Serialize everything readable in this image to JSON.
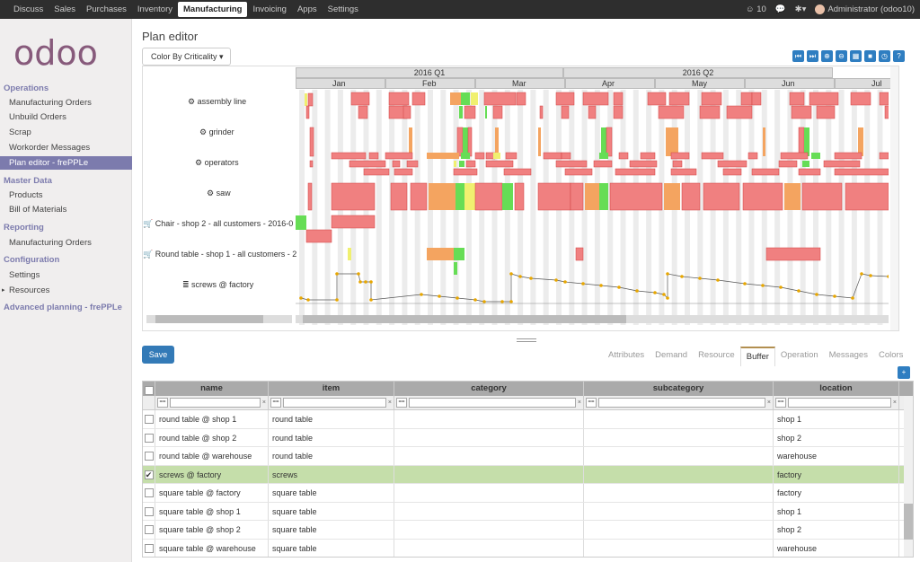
{
  "topbar": {
    "menu": [
      "Discuss",
      "Sales",
      "Purchases",
      "Inventory",
      "Manufacturing",
      "Invoicing",
      "Apps",
      "Settings"
    ],
    "active": "Manufacturing",
    "notif": "10",
    "user": "Administrator (odoo10)"
  },
  "sidebar": {
    "logo": "odoo",
    "sec_operations": "Operations",
    "operations": [
      "Manufacturing Orders",
      "Unbuild Orders",
      "Scrap",
      "Workorder Messages"
    ],
    "active_item": "Plan editor - frePPLe",
    "sec_master": "Master Data",
    "master": [
      "Products",
      "Bill of Materials"
    ],
    "sec_reporting": "Reporting",
    "reporting": [
      "Manufacturing Orders"
    ],
    "sec_config": "Configuration",
    "config": [
      "Settings",
      "Resources"
    ],
    "advanced": "Advanced planning - frePPLe"
  },
  "page": {
    "title": "Plan editor",
    "color_dropdown": "Color By Criticality"
  },
  "timeline": {
    "quarters": [
      "2016 Q1",
      "2016 Q2"
    ],
    "months": [
      "Jan",
      "Feb",
      "Mar",
      "Apr",
      "May",
      "Jun",
      "Jul"
    ]
  },
  "gantt_rows": [
    "assembly line",
    "grinder",
    "operators",
    "saw",
    "Chair - shop 2 - all customers - 2016-0",
    "Round table - shop 1 - all customers - 2",
    "screws @ factory"
  ],
  "save_label": "Save",
  "tabs": [
    "Attributes",
    "Demand",
    "Resource",
    "Buffer",
    "Operation",
    "Messages",
    "Colors"
  ],
  "active_tab": "Buffer",
  "table": {
    "columns": [
      "name",
      "item",
      "category",
      "subcategory",
      "location"
    ],
    "op": "==",
    "rows": [
      {
        "name": "round table @ shop 1",
        "item": "round table",
        "category": "",
        "subcategory": "",
        "location": "shop 1",
        "checked": false
      },
      {
        "name": "round table @ shop 2",
        "item": "round table",
        "category": "",
        "subcategory": "",
        "location": "shop 2",
        "checked": false
      },
      {
        "name": "round table @ warehouse",
        "item": "round table",
        "category": "",
        "subcategory": "",
        "location": "warehouse",
        "checked": false
      },
      {
        "name": "screws @ factory",
        "item": "screws",
        "category": "",
        "subcategory": "",
        "location": "factory",
        "checked": true
      },
      {
        "name": "square table @ factory",
        "item": "square table",
        "category": "",
        "subcategory": "",
        "location": "factory",
        "checked": false
      },
      {
        "name": "square table @ shop 1",
        "item": "square table",
        "category": "",
        "subcategory": "",
        "location": "shop 1",
        "checked": false
      },
      {
        "name": "square table @ shop 2",
        "item": "square table",
        "category": "",
        "subcategory": "",
        "location": "shop 2",
        "checked": false
      },
      {
        "name": "square table @ warehouse",
        "item": "square table",
        "category": "",
        "subcategory": "",
        "location": "warehouse",
        "checked": false
      }
    ]
  },
  "colors": {
    "accent": "#7c7bad",
    "primary": "#337ab7",
    "selected_row": "#c5deaa",
    "bar_red": "#f08080",
    "bar_orange": "#f4a460",
    "bar_green": "#66dd55",
    "bar_yellow": "#f0f070"
  }
}
